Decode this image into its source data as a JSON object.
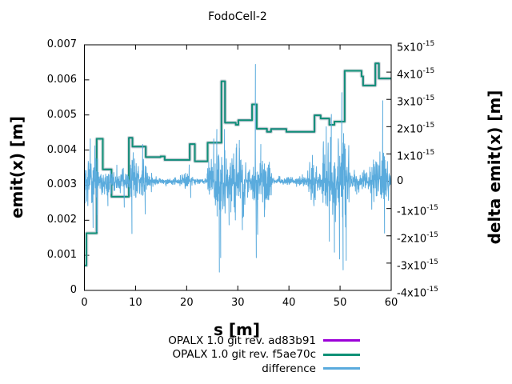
{
  "title": "FodoCell-2",
  "chart_data": {
    "type": "line",
    "title": "FodoCell-2",
    "xlabel": "s [m]",
    "ylabel_left": "emit(x) [m]",
    "ylabel_right": "delta emit(x) [m]",
    "x_range": [
      0,
      60
    ],
    "y_left_range": [
      0,
      0.007
    ],
    "y_right_range_e15": [
      -4,
      5
    ],
    "y_right_unit": "1e-15",
    "grid": false,
    "legend_position": "below-right",
    "x_ticks": [
      0,
      10,
      20,
      30,
      40,
      50,
      60
    ],
    "y_left_tick_labels": [
      "0",
      "0.001",
      "0.002",
      "0.003",
      "0.004",
      "0.005",
      "0.006",
      "0.007"
    ],
    "y_right_ticks": [
      {
        "v": 5,
        "base": "5x10",
        "exp": "-15"
      },
      {
        "v": 4,
        "base": "4x10",
        "exp": "-15"
      },
      {
        "v": 3,
        "base": "3x10",
        "exp": "-15"
      },
      {
        "v": 2,
        "base": "2x10",
        "exp": "-15"
      },
      {
        "v": 1,
        "base": "1x10",
        "exp": "-15"
      },
      {
        "v": 0,
        "base": "0",
        "exp": ""
      },
      {
        "v": -1,
        "base": "-1x10",
        "exp": "-15"
      },
      {
        "v": -2,
        "base": "-2x10",
        "exp": "-15"
      },
      {
        "v": -3,
        "base": "-3x10",
        "exp": "-15"
      },
      {
        "v": -4,
        "base": "-4x10",
        "exp": "-15"
      }
    ],
    "series": [
      {
        "name": "OPALX 1.0 git rev. ad83b91",
        "color": "#9c00d8",
        "axis": "left",
        "style": "steps",
        "linewidth": 2,
        "coincides_with": "OPALX 1.0 git rev. f5ae70c",
        "step_points": []
      },
      {
        "name": "OPALX 1.0 git rev. f5ae70c",
        "color": "#0f9177",
        "axis": "left",
        "style": "steps",
        "linewidth": 2,
        "step_points": [
          [
            0,
            0.00071
          ],
          [
            0.4,
            0.00163
          ],
          [
            2.4,
            0.00432
          ],
          [
            3.6,
            0.00345
          ],
          [
            5.3,
            0.00267
          ],
          [
            8.7,
            0.00435
          ],
          [
            9.4,
            0.0041
          ],
          [
            12,
            0.0038
          ],
          [
            14.9,
            0.00382
          ],
          [
            15.7,
            0.00372
          ],
          [
            20.6,
            0.00417
          ],
          [
            21.6,
            0.00368
          ],
          [
            24.1,
            0.00421
          ],
          [
            26.8,
            0.00596
          ],
          [
            27.5,
            0.00478
          ],
          [
            29.6,
            0.00472
          ],
          [
            30.1,
            0.00485
          ],
          [
            32.8,
            0.0053
          ],
          [
            33.7,
            0.00461
          ],
          [
            35.7,
            0.00452
          ],
          [
            36.5,
            0.0046
          ],
          [
            39.5,
            0.00452
          ],
          [
            45,
            0.00499
          ],
          [
            46.2,
            0.0049
          ],
          [
            47.9,
            0.00472
          ],
          [
            48.9,
            0.00481
          ],
          [
            50.9,
            0.00626
          ],
          [
            54.2,
            0.0061
          ],
          [
            54.5,
            0.00584
          ],
          [
            56.9,
            0.00647
          ],
          [
            57.6,
            0.00604
          ]
        ]
      },
      {
        "name": "difference",
        "color": "#5aabdd",
        "axis": "right",
        "style": "noise-line",
        "linewidth": 1,
        "units_e15": true,
        "noise_seed": 20240601,
        "noise_step": 0.042,
        "envelope_e15": [
          [
            0,
            0.35,
            0.55
          ],
          [
            0.35,
            2.6,
            1.35
          ],
          [
            2.6,
            3.7,
            0.5
          ],
          [
            3.7,
            5.3,
            0.6
          ],
          [
            5.3,
            9.0,
            0.6
          ],
          [
            9.0,
            9.7,
            1.2
          ],
          [
            9.7,
            12.3,
            1.0
          ],
          [
            12.3,
            13.5,
            0.45
          ],
          [
            13.5,
            18.6,
            0.13
          ],
          [
            18.6,
            21.2,
            0.42
          ],
          [
            21.2,
            24.0,
            0.08
          ],
          [
            24.0,
            25.5,
            1.3
          ],
          [
            25.5,
            27.1,
            1.9
          ],
          [
            27.1,
            28.6,
            1.4
          ],
          [
            28.6,
            31.6,
            1.5
          ],
          [
            31.6,
            33.1,
            0.8
          ],
          [
            33.1,
            34.1,
            1.6
          ],
          [
            34.1,
            36.6,
            1.2
          ],
          [
            36.6,
            42.4,
            0.15
          ],
          [
            42.4,
            43.6,
            0.3
          ],
          [
            43.6,
            45.6,
            0.9
          ],
          [
            45.6,
            46.6,
            0.45
          ],
          [
            46.6,
            50.0,
            1.9
          ],
          [
            50.0,
            51.8,
            2.0
          ],
          [
            51.8,
            55.8,
            0.5
          ],
          [
            55.8,
            59.3,
            1.3
          ],
          [
            59.3,
            60,
            0.85
          ]
        ],
        "spikes_e15": [
          [
            0.12,
            -0.8
          ],
          [
            1.15,
            1.55
          ],
          [
            1.7,
            -1.7
          ],
          [
            2.05,
            1.3
          ],
          [
            2.45,
            -1.85
          ],
          [
            4.6,
            -0.9
          ],
          [
            7.8,
            -0.95
          ],
          [
            9.3,
            -1.92
          ],
          [
            9.55,
            1.05
          ],
          [
            11.4,
            1.35
          ],
          [
            11.9,
            -1.2
          ],
          [
            20.5,
            0.6
          ],
          [
            20.8,
            -0.6
          ],
          [
            25.3,
            1.55
          ],
          [
            25.9,
            1.9
          ],
          [
            26.4,
            -3.33
          ],
          [
            26.65,
            -2.8
          ],
          [
            27.4,
            1.9
          ],
          [
            28.3,
            -1.6
          ],
          [
            30.3,
            1.5
          ],
          [
            30.9,
            -1.78
          ],
          [
            33.45,
            4.28
          ],
          [
            33.62,
            -2.8
          ],
          [
            33.88,
            -1.95
          ],
          [
            34.5,
            1.35
          ],
          [
            35.2,
            -1.3
          ],
          [
            44.6,
            0.95
          ],
          [
            44.9,
            -0.9
          ],
          [
            47.3,
            2.0
          ],
          [
            47.9,
            -2.2
          ],
          [
            48.3,
            2.45
          ],
          [
            48.9,
            -2.6
          ],
          [
            49.9,
            -2.85
          ],
          [
            50.35,
            3.25
          ],
          [
            50.6,
            -3.25
          ],
          [
            51.2,
            -2.9
          ],
          [
            58.35,
            2.95
          ],
          [
            58.7,
            -1.9
          ]
        ]
      }
    ],
    "legend": [
      {
        "label": "OPALX 1.0 git rev. ad83b91",
        "color": "#9c00d8"
      },
      {
        "label": "OPALX 1.0 git rev. f5ae70c",
        "color": "#0f9177"
      },
      {
        "label": "difference",
        "color": "#5aabdd"
      }
    ]
  }
}
